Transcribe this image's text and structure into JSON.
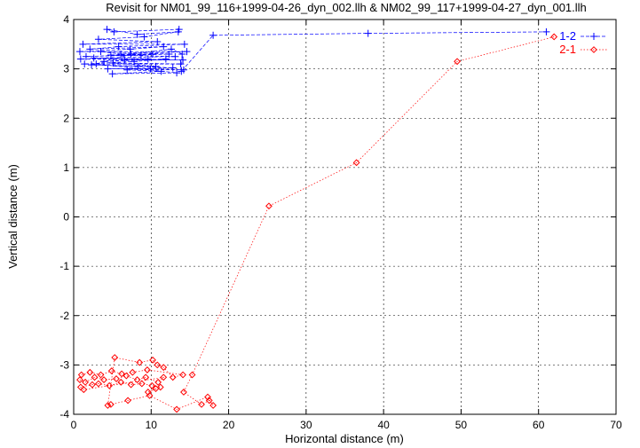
{
  "chart_data": {
    "type": "scatter",
    "title": "Revisit for NM01_99_116+1999-04-26_dyn_002.llh & NM02_99_117+1999-04-27_dyn_001.llh",
    "xlabel": "Horizontal distance (m)",
    "ylabel": "Vertical distance (m)",
    "xlim": [
      0,
      70
    ],
    "ylim": [
      -4,
      4
    ],
    "xticks": [
      "0",
      "10",
      "20",
      "30",
      "40",
      "50",
      "60",
      "70"
    ],
    "yticks": [
      "-4",
      "-3",
      "-2",
      "-1",
      "0",
      "1",
      "2",
      "3",
      "4"
    ],
    "grid": true,
    "legend_position": "top-right",
    "series": [
      {
        "name": "1-2",
        "color": "#0000ff",
        "marker": "plus",
        "line": "dashed",
        "points": [
          [
            13.6,
            3.8
          ],
          [
            5.2,
            3.75
          ],
          [
            4.3,
            3.8
          ],
          [
            8.2,
            3.7
          ],
          [
            13.5,
            3.75
          ],
          [
            9.1,
            3.65
          ],
          [
            3.2,
            3.6
          ],
          [
            10.8,
            3.55
          ],
          [
            1.2,
            3.5
          ],
          [
            14.3,
            3.5
          ],
          [
            5.8,
            3.45
          ],
          [
            2.1,
            3.4
          ],
          [
            11.6,
            3.45
          ],
          [
            7.3,
            3.4
          ],
          [
            0.8,
            3.35
          ],
          [
            14.6,
            3.35
          ],
          [
            6.1,
            3.3
          ],
          [
            3.5,
            3.35
          ],
          [
            12.3,
            3.3
          ],
          [
            8.7,
            3.28
          ],
          [
            1.6,
            3.25
          ],
          [
            10.2,
            3.3
          ],
          [
            4.8,
            3.28
          ],
          [
            13.1,
            3.25
          ],
          [
            2.6,
            3.22
          ],
          [
            9.6,
            3.2
          ],
          [
            0.9,
            3.2
          ],
          [
            14.1,
            3.18
          ],
          [
            6.6,
            3.18
          ],
          [
            3.9,
            3.15
          ],
          [
            11.9,
            3.2
          ],
          [
            7.8,
            3.15
          ],
          [
            1.4,
            3.1
          ],
          [
            13.8,
            3.1
          ],
          [
            5.1,
            3.12
          ],
          [
            10.6,
            3.05
          ],
          [
            2.3,
            3.08
          ],
          [
            8.3,
            3.05
          ],
          [
            12.8,
            3.02
          ],
          [
            4.4,
            3.0
          ],
          [
            9.9,
            3.0
          ],
          [
            14.2,
            2.98
          ],
          [
            6.9,
            2.98
          ],
          [
            11.3,
            2.95
          ],
          [
            5.0,
            2.9
          ],
          [
            13.3,
            2.92
          ],
          [
            2.9,
            3.1
          ],
          [
            7.4,
            3.3
          ],
          [
            12.6,
            3.4
          ],
          [
            14.0,
            3.3
          ],
          [
            13.9,
            2.95
          ],
          [
            18.0,
            3.68
          ],
          [
            38.0,
            3.72
          ],
          [
            61.0,
            3.75
          ]
        ]
      },
      {
        "name": "2-1",
        "color": "#ff0000",
        "marker": "diamond",
        "line": "dotted",
        "points": [
          [
            62.0,
            3.65
          ],
          [
            49.5,
            3.15
          ],
          [
            36.5,
            1.1
          ],
          [
            25.2,
            0.22
          ],
          [
            15.3,
            -3.2
          ],
          [
            14.2,
            -3.55
          ],
          [
            16.5,
            -3.8
          ],
          [
            17.5,
            -3.72
          ],
          [
            18.0,
            -3.82
          ],
          [
            17.3,
            -3.65
          ],
          [
            13.3,
            -3.9
          ],
          [
            9.8,
            -3.62
          ],
          [
            7.0,
            -3.72
          ],
          [
            4.8,
            -3.8
          ],
          [
            4.4,
            -3.82
          ],
          [
            5.3,
            -2.85
          ],
          [
            8.5,
            -2.95
          ],
          [
            10.2,
            -2.9
          ],
          [
            10.8,
            -3.0
          ],
          [
            11.6,
            -3.05
          ],
          [
            12.8,
            -3.25
          ],
          [
            14.1,
            -3.2
          ],
          [
            9.5,
            -3.1
          ],
          [
            7.6,
            -3.15
          ],
          [
            6.2,
            -3.18
          ],
          [
            4.9,
            -3.12
          ],
          [
            3.5,
            -3.2
          ],
          [
            2.1,
            -3.15
          ],
          [
            1.0,
            -3.2
          ],
          [
            0.8,
            -3.3
          ],
          [
            1.5,
            -3.35
          ],
          [
            2.7,
            -3.25
          ],
          [
            3.9,
            -3.3
          ],
          [
            5.5,
            -3.28
          ],
          [
            6.8,
            -3.22
          ],
          [
            8.2,
            -3.3
          ],
          [
            9.3,
            -3.25
          ],
          [
            10.9,
            -3.35
          ],
          [
            11.6,
            -3.25
          ],
          [
            1.3,
            -3.5
          ],
          [
            0.9,
            -3.45
          ],
          [
            2.4,
            -3.4
          ],
          [
            3.2,
            -3.38
          ],
          [
            4.6,
            -3.42
          ],
          [
            6.1,
            -3.35
          ],
          [
            7.4,
            -3.4
          ],
          [
            8.8,
            -3.38
          ],
          [
            10.1,
            -3.42
          ],
          [
            11.2,
            -3.45
          ],
          [
            9.6,
            -3.55
          ],
          [
            10.6,
            -3.48
          ]
        ]
      }
    ]
  }
}
